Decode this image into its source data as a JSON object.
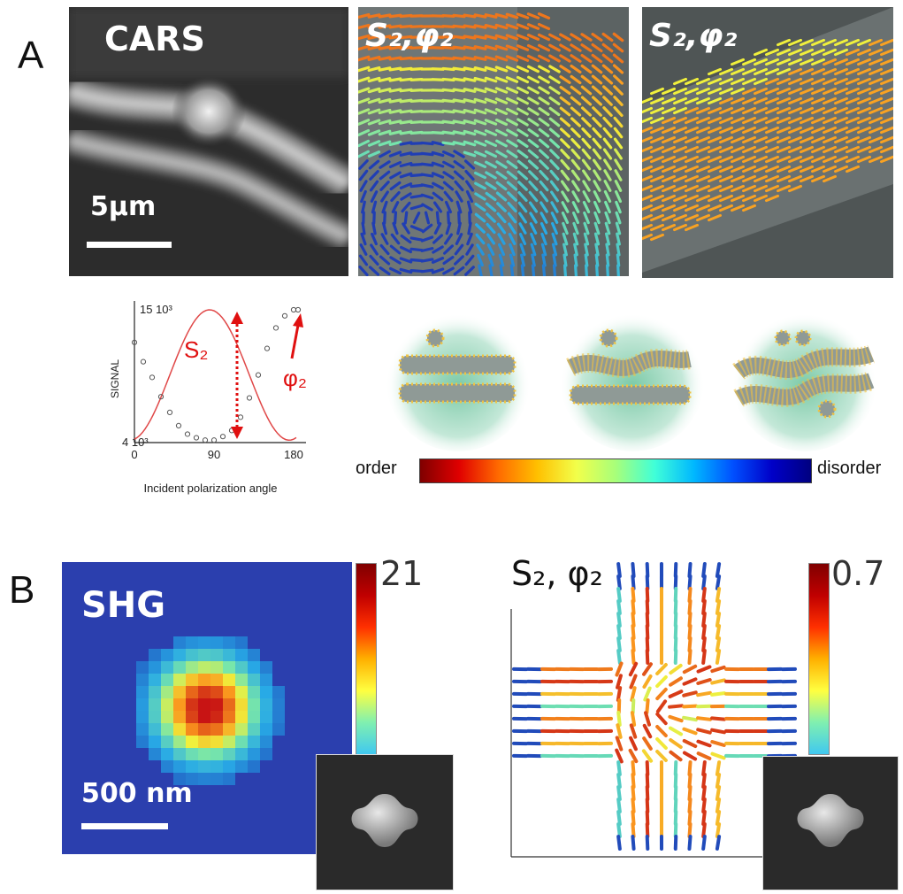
{
  "panelA": {
    "letter": "A",
    "cars": {
      "title": "CARS",
      "scale": "5µm"
    },
    "map1": {
      "title": "S₂,φ₂"
    },
    "map2": {
      "title": "S₂,φ₂"
    },
    "plot": {
      "ylabel": "SIGNAL",
      "xlabel": "Incident polarization angle",
      "ytick_top": "15 10³",
      "ytick_bottom": "4 10³",
      "xticks": [
        "0",
        "90",
        "180"
      ],
      "s2_label": "S₂",
      "phi2_label": "φ₂"
    },
    "colorbar": {
      "left": "order",
      "right": "disorder"
    }
  },
  "panelB": {
    "letter": "B",
    "shg": {
      "title": "SHG",
      "scale": "500 nm",
      "cbar_max": "21"
    },
    "map": {
      "title": "S₂, φ₂",
      "cbar_max": "0.7"
    }
  },
  "chart_data": {
    "type": "scatter",
    "xlabel": "Incident polarization angle",
    "ylabel": "SIGNAL",
    "xlim": [
      0,
      180
    ],
    "ylim": [
      4000,
      15000
    ],
    "x": [
      0,
      10,
      20,
      30,
      40,
      50,
      60,
      70,
      80,
      90,
      100,
      110,
      120,
      130,
      140,
      150,
      160,
      170,
      180,
      185
    ],
    "y": [
      12300,
      10700,
      9400,
      7800,
      6500,
      5400,
      4700,
      4400,
      4200,
      4200,
      4500,
      5000,
      6100,
      7700,
      9600,
      11800,
      13500,
      14500,
      15000,
      15000
    ]
  }
}
